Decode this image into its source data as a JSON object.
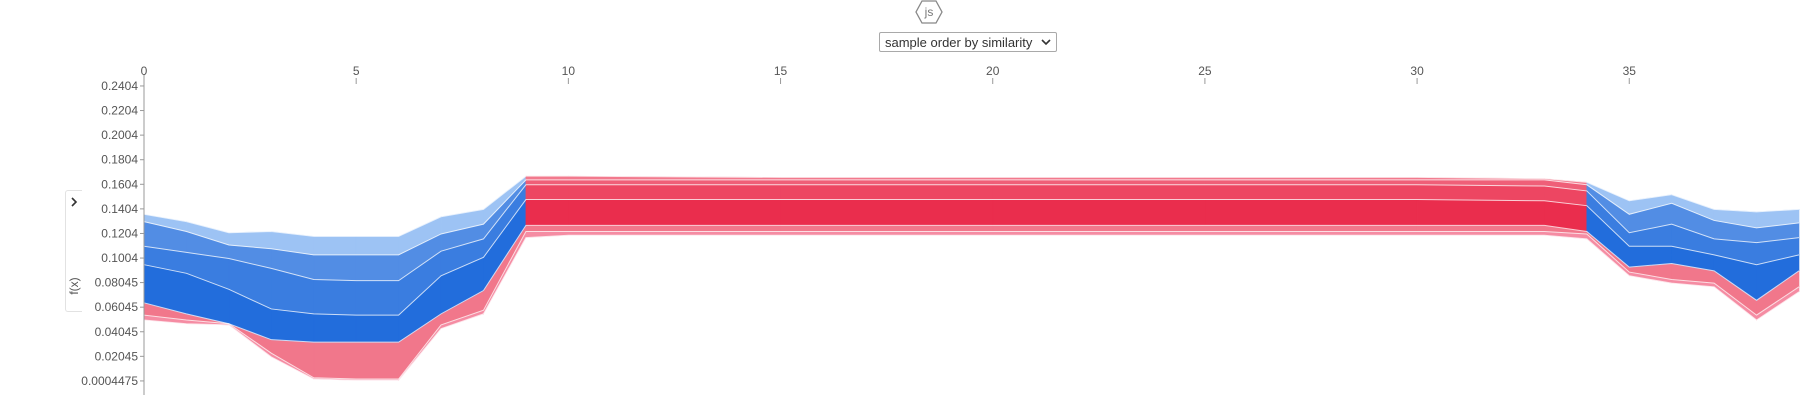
{
  "badge": {
    "label": "js",
    "icon": "hexagon-icon"
  },
  "order_select": {
    "selected": "sample order by similarity"
  },
  "colors": {
    "positive": "#ea2d4d",
    "negative": "#3a7de0",
    "positive_light": "#f58ca3",
    "negative_light": "#9dc3f4"
  },
  "chart_data": {
    "type": "area",
    "ylabel": "f(x)",
    "xlabel": "",
    "x_ticks": [
      0,
      5,
      10,
      15,
      20,
      25,
      30,
      35
    ],
    "y_ticks": [
      "0.2404",
      "0.2204",
      "0.2004",
      "0.1804",
      "0.1604",
      "0.1404",
      "0.1204",
      "0.1004",
      "0.08045",
      "0.06045",
      "0.04045",
      "0.02045",
      "0.0004475"
    ],
    "xlim": [
      0,
      39
    ],
    "ylim": [
      -0.011,
      0.2485
    ],
    "x": [
      0,
      1,
      2,
      3,
      4,
      5,
      6,
      7,
      8,
      9,
      10,
      15,
      20,
      25,
      30,
      33,
      34,
      35,
      36,
      37,
      38,
      39
    ],
    "series": [
      {
        "values": [
          0.05,
          0.047,
          0.046,
          0.02,
          0.002,
          0.001,
          0.001,
          0.043,
          0.055,
          0.117,
          0.119,
          0.119,
          0.119,
          0.119,
          0.119,
          0.119,
          0.116,
          0.086,
          0.08,
          0.077,
          0.05,
          0.073
        ]
      },
      {
        "values": [
          0.054,
          0.05,
          0.047,
          0.023,
          0.003,
          0.002,
          0.002,
          0.046,
          0.058,
          0.122,
          0.122,
          0.122,
          0.122,
          0.122,
          0.122,
          0.122,
          0.12,
          0.089,
          0.083,
          0.08,
          0.054,
          0.077
        ]
      },
      {
        "values": [
          0.064,
          0.055,
          0.047,
          0.034,
          0.032,
          0.032,
          0.032,
          0.055,
          0.074,
          0.127,
          0.127,
          0.127,
          0.127,
          0.127,
          0.127,
          0.127,
          0.122,
          0.093,
          0.096,
          0.09,
          0.066,
          0.09
        ]
      },
      {
        "values": [
          0.095,
          0.088,
          0.075,
          0.059,
          0.055,
          0.054,
          0.054,
          0.086,
          0.101,
          0.148,
          0.148,
          0.148,
          0.148,
          0.148,
          0.148,
          0.147,
          0.143,
          0.11,
          0.11,
          0.103,
          0.095,
          0.103
        ]
      },
      {
        "values": [
          0.11,
          0.105,
          0.1,
          0.092,
          0.083,
          0.082,
          0.082,
          0.106,
          0.116,
          0.16,
          0.16,
          0.16,
          0.16,
          0.16,
          0.16,
          0.159,
          0.155,
          0.121,
          0.128,
          0.116,
          0.113,
          0.117
        ]
      },
      {
        "values": [
          0.13,
          0.122,
          0.111,
          0.108,
          0.103,
          0.103,
          0.103,
          0.12,
          0.128,
          0.164,
          0.164,
          0.164,
          0.164,
          0.164,
          0.164,
          0.164,
          0.16,
          0.136,
          0.145,
          0.131,
          0.125,
          0.129
        ]
      },
      {
        "values": [
          0.136,
          0.13,
          0.121,
          0.122,
          0.118,
          0.118,
          0.118,
          0.134,
          0.14,
          0.167,
          0.167,
          0.166,
          0.166,
          0.166,
          0.166,
          0.165,
          0.162,
          0.147,
          0.152,
          0.14,
          0.138,
          0.14
        ]
      }
    ]
  }
}
